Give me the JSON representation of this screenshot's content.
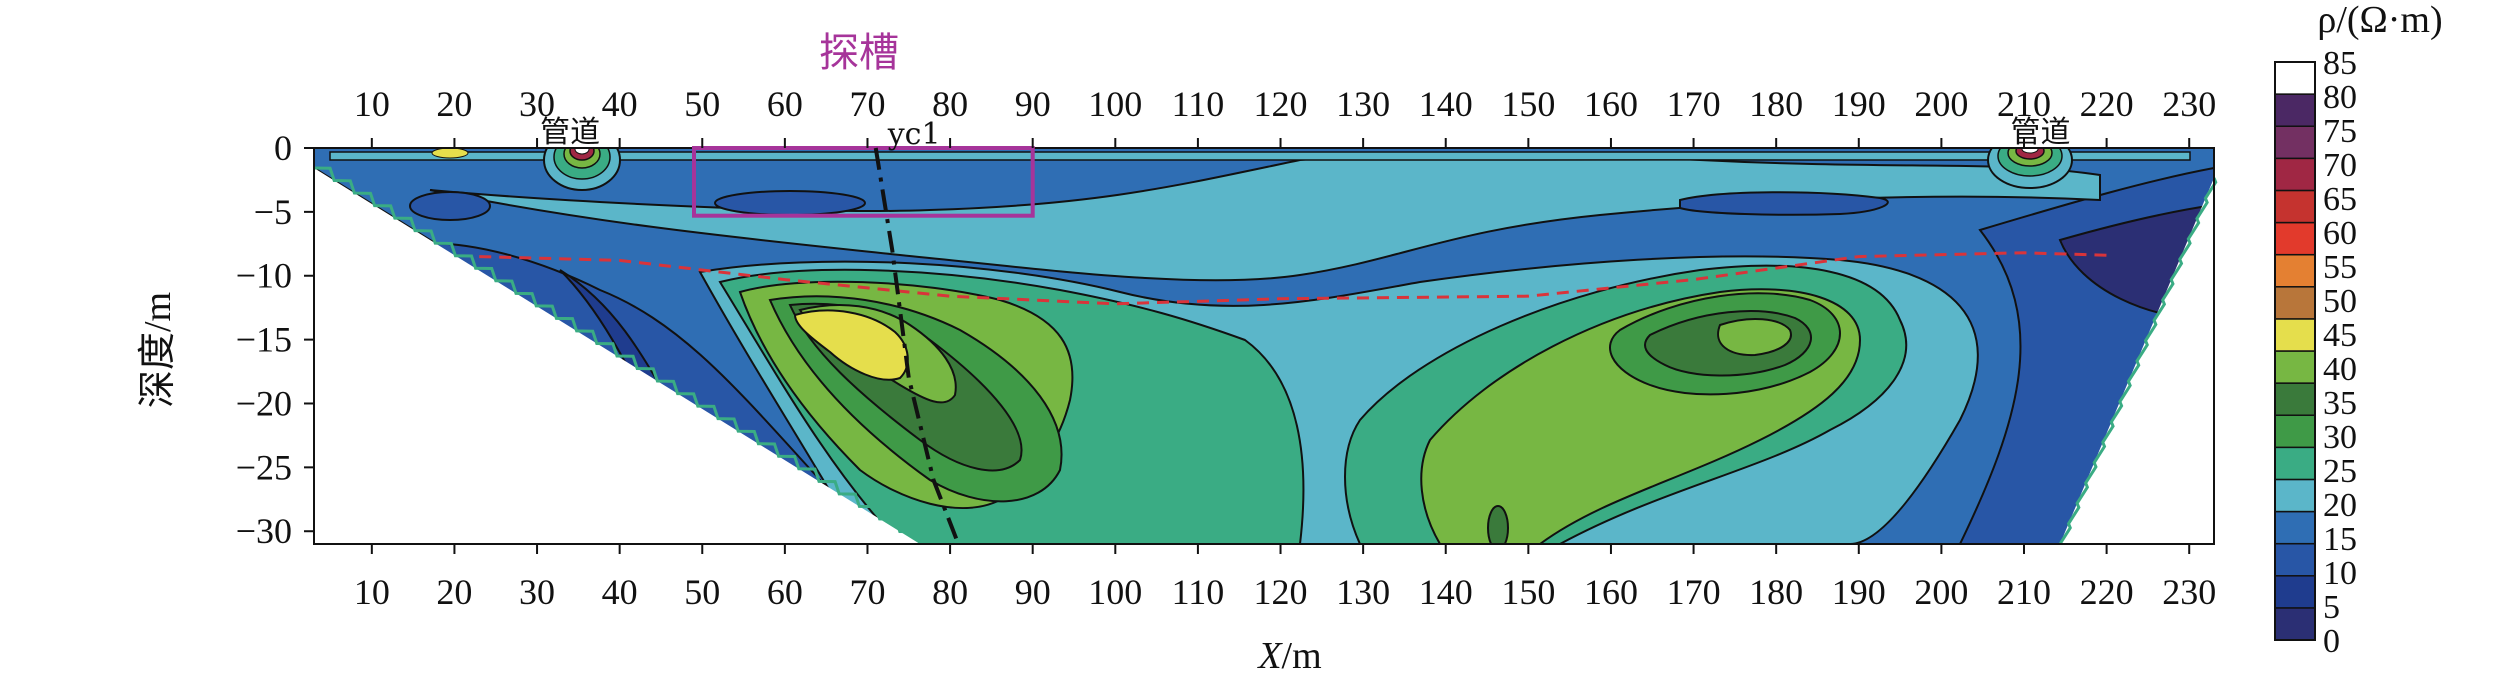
{
  "chart_data": {
    "type": "heatmap",
    "title": "",
    "xlabel": "X/m",
    "ylabel": "深度/m",
    "x_ticks_top": [
      10,
      20,
      30,
      40,
      50,
      60,
      70,
      80,
      90,
      100,
      110,
      120,
      130,
      140,
      150,
      160,
      170,
      180,
      190,
      200,
      210,
      220,
      230
    ],
    "x_ticks_bottom": [
      10,
      20,
      30,
      40,
      50,
      60,
      70,
      80,
      90,
      100,
      110,
      120,
      130,
      140,
      150,
      160,
      170,
      180,
      190,
      200,
      210,
      220,
      230
    ],
    "y_ticks": [
      0,
      -5,
      -10,
      -15,
      -20,
      -25,
      -30
    ],
    "xlim": [
      3,
      233
    ],
    "ylim": [
      -31,
      0
    ],
    "colorbar": {
      "label": "ρ/(Ω·m)",
      "ticks": [
        85,
        80,
        75,
        70,
        65,
        60,
        55,
        50,
        45,
        40,
        35,
        30,
        25,
        20,
        15,
        10,
        5,
        0
      ],
      "colors": [
        "#2b2f74",
        "#1f3c8e",
        "#2856a6",
        "#2f6eb4",
        "#5bb6c9",
        "#3aac84",
        "#3f9a47",
        "#3a7a3b",
        "#77b743",
        "#e5de4c",
        "#b8763a",
        "#e48032",
        "#e23a2c",
        "#c5332f",
        "#a02744",
        "#733062",
        "#4b2864",
        "#ffffff"
      ]
    },
    "annotations": {
      "trench_label": "探槽",
      "trench_box": {
        "x_start": 49,
        "x_end": 90,
        "depth_top": 0,
        "depth_bottom": -5.3
      },
      "pipe_left": {
        "label": "管道",
        "x": 34
      },
      "pipe_right": {
        "label": "管道",
        "x": 212
      },
      "fault_label": "yc1",
      "fault_line": [
        [
          71,
          0
        ],
        [
          73,
          -8
        ],
        [
          75,
          -18
        ],
        [
          78,
          -26
        ],
        [
          81,
          -31
        ]
      ],
      "interface_line": [
        [
          23,
          -8.5
        ],
        [
          40,
          -8.8
        ],
        [
          60,
          -10.3
        ],
        [
          80,
          -11.6
        ],
        [
          100,
          -12.2
        ],
        [
          120,
          -11.8
        ],
        [
          150,
          -11.6
        ],
        [
          170,
          -10.3
        ],
        [
          190,
          -8.5
        ],
        [
          210,
          -8.2
        ],
        [
          220,
          -8.4
        ]
      ]
    }
  }
}
